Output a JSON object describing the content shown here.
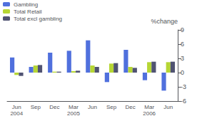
{
  "chart_data": {
    "type": "bar",
    "categories": [
      "Jun\n2004",
      "Sep",
      "Dec",
      "Mar\n2005",
      "Jun",
      "Sep",
      "Dec",
      "Mar\n2006",
      "Jun"
    ],
    "series": [
      {
        "name": "Gambling",
        "values": [
          3.2,
          1.2,
          4.2,
          4.6,
          6.8,
          -2.0,
          4.8,
          -1.6,
          -3.8
        ]
      },
      {
        "name": "Total Retail",
        "values": [
          -0.5,
          1.5,
          0.2,
          0.3,
          1.5,
          1.9,
          1.2,
          2.2,
          2.2
        ]
      },
      {
        "name": "Total excl gambling",
        "values": [
          -0.7,
          1.6,
          0.2,
          0.4,
          1.2,
          2.0,
          1.0,
          2.3,
          2.3
        ]
      }
    ],
    "ylabel": "%change",
    "ylim": [
      -6,
      9
    ],
    "yticks": [
      -6,
      -3,
      0,
      3,
      6,
      9
    ],
    "grid": false,
    "legend": "upper left"
  }
}
